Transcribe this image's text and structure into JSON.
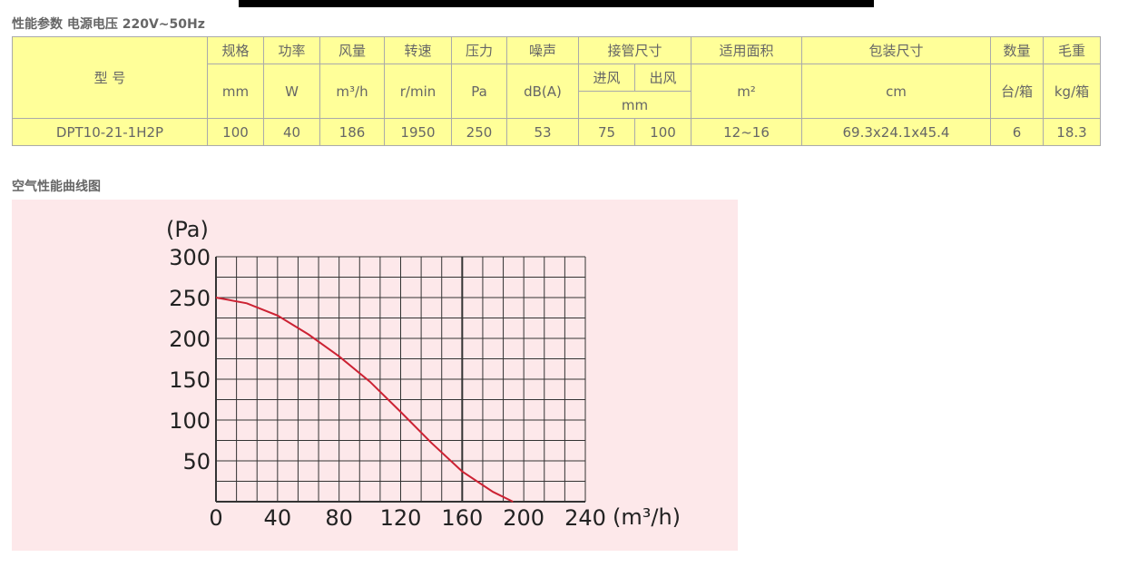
{
  "header": {
    "title": "性能参数 电源电压 220V~50Hz"
  },
  "table": {
    "header_row1": [
      "型 号",
      "规格",
      "功率",
      "风量",
      "转速",
      "压力",
      "噪声",
      "接管尺寸",
      "适用面积",
      "包装尺寸",
      "数量",
      "毛重"
    ],
    "header_row2": [
      "mm",
      "W",
      "m³/h",
      "r/min",
      "Pa",
      "dB(A)",
      "进风",
      "出风",
      "m²",
      "cm",
      "台/箱",
      "kg/箱"
    ],
    "header_row3": [
      "mm"
    ],
    "rows": [
      [
        "DPT10-21-1H2P",
        "100",
        "40",
        "186",
        "1950",
        "250",
        "53",
        "75",
        "100",
        "12~16",
        "69.3x24.1x45.4",
        "6",
        "18.3"
      ]
    ]
  },
  "chart_data": {
    "type": "line",
    "title": "空气性能曲线图",
    "x_label": "(m³/h)",
    "y_label": "(Pa)",
    "x": [
      0,
      20,
      40,
      60,
      80,
      100,
      120,
      140,
      160,
      180,
      193
    ],
    "series": [
      {
        "name": "Pa",
        "color": "#cc2233",
        "values": [
          250,
          243,
          228,
          205,
          178,
          147,
          110,
          72,
          37,
          12,
          0
        ]
      }
    ],
    "xlim": [
      0,
      240
    ],
    "ylim": [
      0,
      300
    ],
    "xticks": [
      0,
      40,
      80,
      120,
      160,
      200,
      240
    ],
    "yticks": [
      50,
      100,
      150,
      200,
      250,
      300
    ],
    "grid": true
  }
}
